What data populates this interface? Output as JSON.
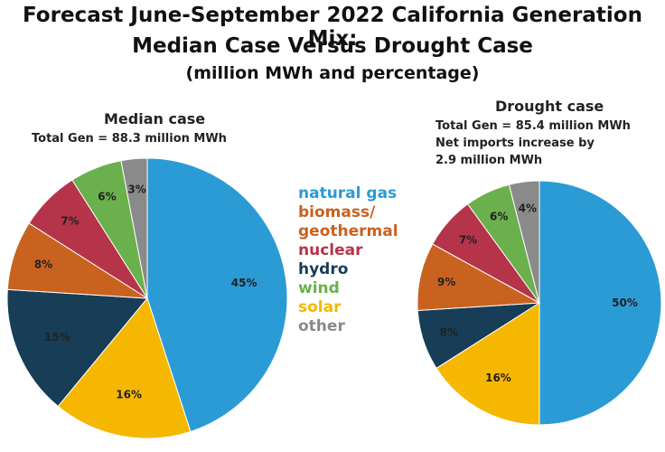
{
  "title": {
    "line1": "Forecast June-September 2022 California Generation Mix:",
    "line2": "Median Case Versus Drought Case",
    "line3": "(million MWh and percentage)"
  },
  "colors": {
    "natural gas": "#2b9bd6",
    "biomass/ geothermal": "#c9621f",
    "nuclear": "#b5344a",
    "hydro": "#173d57",
    "wind": "#6ab04c",
    "solar": "#f5b700",
    "other": "#8a8a8a"
  },
  "legend": [
    {
      "label": "natural gas",
      "color": "#2b9bd6"
    },
    {
      "label": "biomass/",
      "color": "#c9621f"
    },
    {
      "label": "geothermal",
      "color": "#c9621f"
    },
    {
      "label": "nuclear",
      "color": "#b5344a"
    },
    {
      "label": "hydro",
      "color": "#173d57"
    },
    {
      "label": "wind",
      "color": "#6ab04c"
    },
    {
      "label": "solar",
      "color": "#f5b700"
    },
    {
      "label": "other",
      "color": "#8a8a8a"
    }
  ],
  "chart_data": [
    {
      "type": "pie",
      "title": "Median case",
      "subtitle": "Total Gen = 88.3 million MWh",
      "categories": [
        "natural gas",
        "solar",
        "hydro",
        "biomass/ geothermal",
        "nuclear",
        "wind",
        "other"
      ],
      "values": [
        45,
        16,
        15,
        8,
        7,
        6,
        3
      ],
      "labels": [
        "45%",
        "16%",
        "15%",
        "8%",
        "7%",
        "6%",
        "3%"
      ]
    },
    {
      "type": "pie",
      "title": "Drought case",
      "subtitle_lines": [
        "Total Gen = 85.4 million MWh",
        "Net imports increase by",
        "2.9 million MWh"
      ],
      "categories": [
        "natural gas",
        "solar",
        "hydro",
        "biomass/ geothermal",
        "nuclear",
        "wind",
        "other"
      ],
      "values": [
        50,
        16,
        8,
        9,
        7,
        6,
        4
      ],
      "labels": [
        "50%",
        "16%",
        "8%",
        "9%",
        "7%",
        "6%",
        "4%"
      ]
    }
  ]
}
